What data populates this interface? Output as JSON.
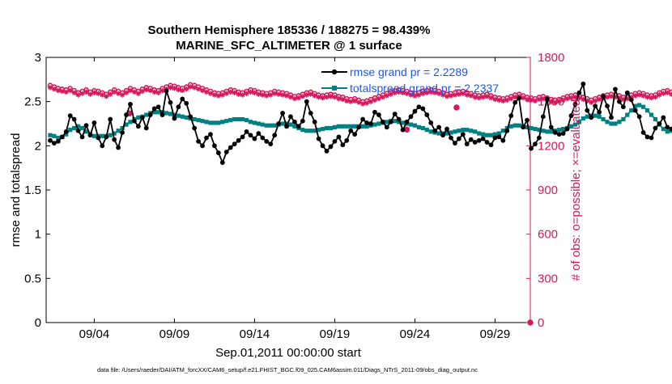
{
  "chart_data": {
    "type": "line",
    "title": "Southern Hemisphere 185336 / 188275 = 98.439%",
    "subtitle": "MARINE_SFC_ALTIMETER @ 1 surface",
    "xlabel": "Sep.01,2011 00:00:00 start",
    "ylabel_left": "rmse and totalspread",
    "ylabel_right": "# of obs: o=possible; ×=evaluated",
    "footnote": "data file: /Users/raeder/DAI/ATM_forcXX/CAM6_setup/f.e21.FHIST_BGC.f09_025.CAM6assim.011/Diags_NTrS_2011-09/obs_diag_output.nc",
    "xlim": [
      1,
      31.2
    ],
    "ylim_left": [
      0,
      3
    ],
    "ylim_right": [
      0,
      1800
    ],
    "x_tick_values": [
      4,
      9,
      14,
      19,
      24,
      29
    ],
    "x_tick_labels": [
      "09/04",
      "09/09",
      "09/14",
      "09/19",
      "09/24",
      "09/29"
    ],
    "y_left_ticks": [
      "0",
      "0.5",
      "1",
      "1.5",
      "2",
      "2.5",
      "3"
    ],
    "y_right_ticks": [
      "0",
      "300",
      "600",
      "900",
      "1200",
      "1500",
      "1800"
    ],
    "grid": false,
    "legend_position": "top-right",
    "colors": {
      "rmse": "#000000",
      "totalspread": "#008080",
      "obs": "#d6185e",
      "legend_text": "#1a55ee",
      "right_axis": "#d6185e"
    },
    "x_start": 1.25,
    "x_step": 0.25,
    "series": [
      {
        "name": "rmse grand pr = 2.2289",
        "axis": "left",
        "values": [
          2.06,
          2.03,
          2.05,
          2.1,
          2.16,
          2.34,
          2.3,
          2.17,
          2.1,
          2.23,
          2.12,
          2.26,
          2.09,
          2.0,
          2.1,
          2.3,
          2.07,
          1.98,
          2.15,
          2.35,
          2.47,
          2.28,
          2.22,
          2.32,
          2.2,
          2.35,
          2.42,
          2.44,
          2.35,
          2.62,
          2.49,
          2.31,
          2.44,
          2.53,
          2.48,
          2.33,
          2.2,
          2.05,
          2.0,
          2.09,
          2.13,
          2.0,
          1.92,
          1.81,
          1.93,
          1.98,
          2.02,
          2.06,
          2.1,
          2.16,
          2.12,
          2.08,
          2.14,
          2.09,
          2.05,
          2.02,
          2.12,
          2.25,
          2.37,
          2.22,
          2.33,
          2.27,
          2.22,
          2.28,
          2.5,
          2.37,
          2.27,
          2.08,
          2.0,
          1.94,
          1.99,
          2.05,
          2.1,
          2.01,
          2.06,
          2.17,
          2.13,
          2.21,
          2.3,
          2.26,
          2.25,
          2.38,
          2.35,
          2.27,
          2.21,
          2.27,
          2.36,
          2.3,
          2.18,
          2.27,
          2.33,
          2.39,
          2.44,
          2.42,
          2.35,
          2.26,
          2.17,
          2.21,
          2.12,
          2.19,
          2.09,
          2.03,
          2.08,
          2.13,
          2.02,
          2.07,
          2.04,
          2.06,
          2.08,
          2.04,
          2.01,
          2.09,
          2.1,
          2.06,
          2.17,
          2.34,
          2.49,
          2.54,
          2.21,
          2.29,
          1.97,
          2.02,
          2.09,
          2.33,
          2.53,
          2.21,
          2.15,
          2.13,
          2.14,
          2.19,
          2.34,
          2.47,
          2.6,
          2.7,
          2.4,
          2.32,
          2.45,
          2.38,
          2.56,
          2.45,
          2.32,
          2.64,
          2.5,
          2.44,
          2.6,
          2.52,
          2.4,
          2.33,
          2.15,
          2.1,
          2.09,
          2.2,
          2.25,
          2.32,
          2.21,
          2.19,
          2.23,
          2.26,
          2.35,
          2.22,
          2.18,
          2.14
        ]
      },
      {
        "name": "totalspread grand pr = 2.2337",
        "axis": "left",
        "values": [
          2.12,
          2.11,
          2.09,
          2.1,
          2.13,
          2.18,
          2.2,
          2.22,
          2.2,
          2.16,
          2.13,
          2.11,
          2.11,
          2.11,
          2.11,
          2.12,
          2.14,
          2.17,
          2.2,
          2.24,
          2.27,
          2.3,
          2.32,
          2.33,
          2.35,
          2.37,
          2.38,
          2.38,
          2.38,
          2.37,
          2.36,
          2.35,
          2.34,
          2.33,
          2.32,
          2.31,
          2.3,
          2.29,
          2.28,
          2.27,
          2.26,
          2.26,
          2.26,
          2.27,
          2.28,
          2.29,
          2.3,
          2.3,
          2.3,
          2.29,
          2.27,
          2.26,
          2.25,
          2.24,
          2.23,
          2.23,
          2.23,
          2.24,
          2.25,
          2.25,
          2.24,
          2.22,
          2.2,
          2.18,
          2.17,
          2.17,
          2.17,
          2.18,
          2.19,
          2.2,
          2.2,
          2.21,
          2.22,
          2.22,
          2.22,
          2.22,
          2.22,
          2.22,
          2.22,
          2.22,
          2.23,
          2.24,
          2.25,
          2.26,
          2.27,
          2.28,
          2.28,
          2.27,
          2.26,
          2.25,
          2.24,
          2.23,
          2.21,
          2.2,
          2.18,
          2.16,
          2.15,
          2.14,
          2.14,
          2.14,
          2.15,
          2.16,
          2.17,
          2.18,
          2.18,
          2.17,
          2.16,
          2.14,
          2.13,
          2.12,
          2.12,
          2.13,
          2.14,
          2.17,
          2.2,
          2.22,
          2.23,
          2.23,
          2.22,
          2.21,
          2.2,
          2.19,
          2.18,
          2.17,
          2.16,
          2.16,
          2.17,
          2.18,
          2.19,
          2.2,
          2.22,
          2.24,
          2.27,
          2.31,
          2.33,
          2.34,
          2.34,
          2.33,
          2.3,
          2.27,
          2.25,
          2.25,
          2.27,
          2.3,
          2.35,
          2.4,
          2.45,
          2.46,
          2.44,
          2.4,
          2.35,
          2.3,
          2.24,
          2.19,
          2.16,
          2.17,
          2.2,
          2.22,
          2.23,
          2.24,
          2.27,
          2.29,
          2.27,
          2.24
        ]
      },
      {
        "name": "possible",
        "axis": "right",
        "marker": "circle",
        "values": [
          1610,
          1600,
          1590,
          1585,
          1580,
          1590,
          1575,
          1560,
          1570,
          1580,
          1565,
          1575,
          1570,
          1560,
          1550,
          1565,
          1580,
          1570,
          1560,
          1575,
          1590,
          1580,
          1570,
          1585,
          1595,
          1590,
          1580,
          1575,
          1590,
          1600,
          1610,
          1605,
          1595,
          1590,
          1600,
          1615,
          1610,
          1600,
          1590,
          1580,
          1570,
          1560,
          1555,
          1560,
          1570,
          1580,
          1575,
          1565,
          1560,
          1570,
          1580,
          1575,
          1565,
          1560,
          1555,
          1560,
          1570,
          1565,
          1560,
          1555,
          1545,
          1535,
          1540,
          1550,
          1560,
          1565,
          1555,
          1545,
          1540,
          1545,
          1550,
          1545,
          1535,
          1530,
          1520,
          1515,
          1520,
          1510,
          1500,
          1505,
          1515,
          1525,
          1535,
          1545,
          1555,
          1565,
          1575,
          1580,
          1575,
          1570,
          1560,
          1555,
          1560,
          1570,
          1575,
          1580,
          1575,
          1570,
          1560,
          1550,
          1555,
          1560,
          1565,
          1570,
          1560,
          1555,
          1545,
          1540,
          1545,
          1550,
          1540,
          1530,
          1525,
          1520,
          1525,
          1535,
          1545,
          1550,
          1540,
          1530,
          1525,
          1520,
          1530,
          1535,
          1525,
          1515,
          1510,
          1515,
          1525,
          1535,
          1540,
          1545,
          1540,
          1530,
          1520,
          1510,
          1520,
          1530,
          1540,
          1545,
          1550,
          1545,
          1540,
          1530,
          1535,
          1545,
          1555,
          1560,
          1555,
          1545,
          1540,
          1545,
          1560,
          1570,
          1575,
          1565,
          1555,
          1550,
          1560,
          1575
        ],
        "extra_points": [
          {
            "x": 6.2,
            "y": 1420
          },
          {
            "x": 23.5,
            "y": 1310
          },
          {
            "x": 26.6,
            "y": 1460
          },
          {
            "x": 31.2,
            "y": 0
          }
        ]
      },
      {
        "name": "evaluated",
        "axis": "right",
        "marker": "asterisk",
        "values": [
          1595,
          1585,
          1575,
          1570,
          1565,
          1575,
          1560,
          1545,
          1555,
          1565,
          1550,
          1560,
          1555,
          1545,
          1535,
          1550,
          1565,
          1555,
          1545,
          1560,
          1575,
          1565,
          1555,
          1570,
          1580,
          1575,
          1565,
          1560,
          1575,
          1585,
          1595,
          1590,
          1580,
          1575,
          1585,
          1600,
          1595,
          1585,
          1575,
          1565,
          1555,
          1545,
          1540,
          1545,
          1555,
          1565,
          1560,
          1550,
          1545,
          1555,
          1565,
          1560,
          1550,
          1545,
          1540,
          1545,
          1555,
          1550,
          1545,
          1540,
          1530,
          1520,
          1525,
          1535,
          1545,
          1550,
          1540,
          1530,
          1525,
          1530,
          1535,
          1530,
          1520,
          1515,
          1505,
          1500,
          1505,
          1495,
          1485,
          1490,
          1500,
          1510,
          1520,
          1530,
          1540,
          1550,
          1560,
          1565,
          1560,
          1555,
          1545,
          1540,
          1545,
          1555,
          1560,
          1565,
          1560,
          1555,
          1545,
          1535,
          1540,
          1545,
          1550,
          1555,
          1545,
          1540,
          1530,
          1525,
          1530,
          1535,
          1525,
          1515,
          1510,
          1505,
          1510,
          1520,
          1530,
          1535,
          1525,
          1515,
          1510,
          1505,
          1515,
          1520,
          1510,
          1500,
          1495,
          1500,
          1510,
          1520,
          1525,
          1530,
          1525,
          1515,
          1505,
          1495,
          1505,
          1515,
          1525,
          1530,
          1535,
          1530,
          1525,
          1515,
          1520,
          1530,
          1540,
          1545,
          1540,
          1530,
          1525,
          1530,
          1545,
          1555,
          1560,
          1550,
          1540,
          1535,
          1545,
          1560
        ]
      }
    ]
  }
}
